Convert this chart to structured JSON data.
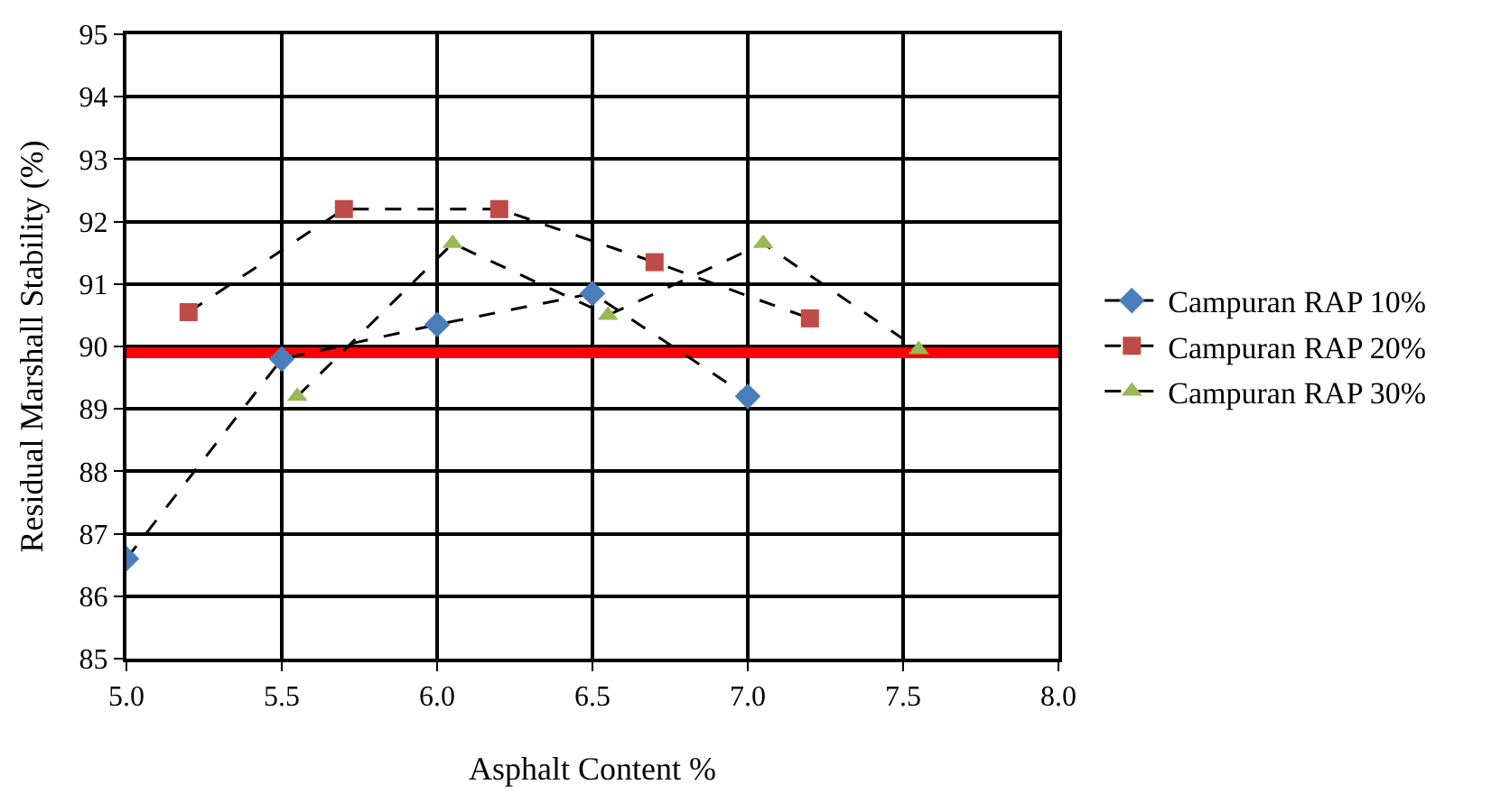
{
  "chart_data": {
    "type": "line",
    "xlabel": "Asphalt Content %",
    "ylabel": "Residual Marshall Stability (%)",
    "xlim": [
      5.0,
      8.0
    ],
    "xticks": [
      {
        "value": 5.0,
        "label": "5.0"
      },
      {
        "value": 5.5,
        "label": "5.5"
      },
      {
        "value": 6.0,
        "label": "6.0"
      },
      {
        "value": 6.5,
        "label": "6.5"
      },
      {
        "value": 7.0,
        "label": "7.0"
      },
      {
        "value": 7.5,
        "label": "7.5"
      },
      {
        "value": 8.0,
        "label": "8.0"
      }
    ],
    "ylim": [
      85,
      95
    ],
    "yticks": [
      85,
      86,
      87,
      88,
      89,
      90,
      91,
      92,
      93,
      94,
      95
    ],
    "grid": true,
    "legend": "right",
    "line_style": "dashed",
    "series": [
      {
        "name": "Campuran RAP 10%",
        "color": "#4a7ebb",
        "marker": "diamond",
        "x": [
          5.0,
          5.5,
          6.0,
          6.5,
          7.0
        ],
        "values": [
          86.6,
          89.8,
          90.35,
          90.85,
          89.2
        ]
      },
      {
        "name": "Campuran RAP 20%",
        "color": "#be4b48",
        "marker": "square",
        "x": [
          5.2,
          5.7,
          6.2,
          6.7,
          7.2
        ],
        "values": [
          90.55,
          92.2,
          92.2,
          91.35,
          90.45
        ]
      },
      {
        "name": "Campuran RAP 30%",
        "color": "#98b954",
        "marker": "triangle",
        "x": [
          5.55,
          6.05,
          6.55,
          7.05,
          7.55
        ],
        "values": [
          89.2,
          91.65,
          90.5,
          91.65,
          89.95
        ]
      }
    ],
    "ref_lines": [
      {
        "axis": "y",
        "value": 89.9,
        "color": "#ff0000",
        "line_style": "solid"
      }
    ]
  }
}
